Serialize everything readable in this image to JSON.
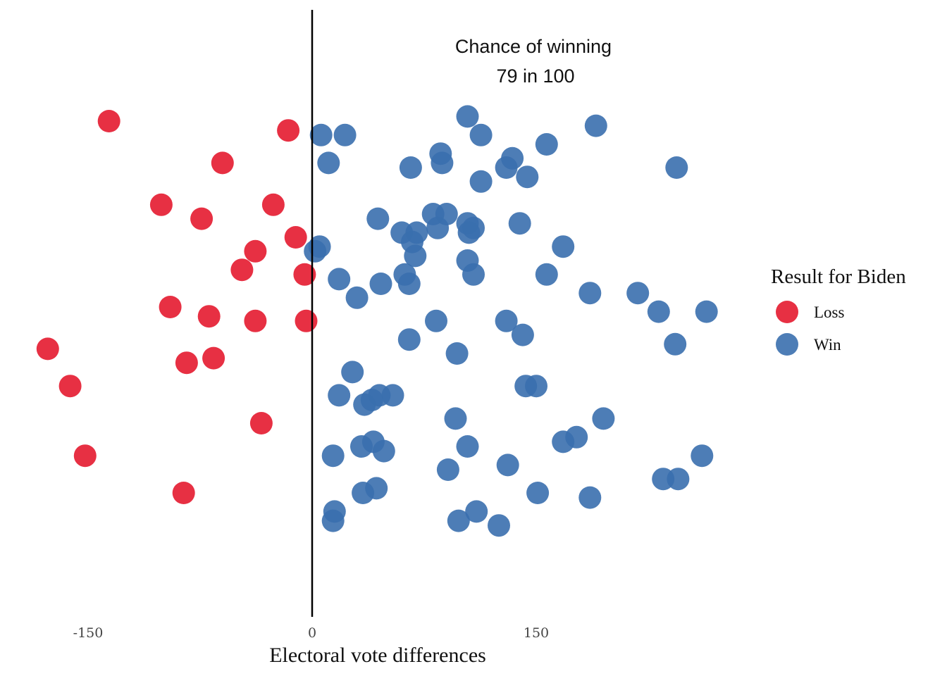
{
  "chart_data": {
    "type": "scatter",
    "title": "",
    "annotation": {
      "line1": "Chance of winning",
      "line2": "79 in 100"
    },
    "xlabel": "Electoral vote differences",
    "ylabel": "",
    "xlim": [
      -200,
      300
    ],
    "xticks": [
      {
        "value": -150,
        "label": "-150"
      },
      {
        "value": 0,
        "label": "0"
      },
      {
        "value": 150,
        "label": "150"
      }
    ],
    "reference_line": 0,
    "grid": false,
    "legend": {
      "title": "Result for Biden",
      "position": "right",
      "entries": [
        {
          "label": "Loss",
          "color": "#E41A2F"
        },
        {
          "label": "Win",
          "color": "#3A6FAE"
        }
      ]
    },
    "series": [
      {
        "name": "Loss",
        "color": "#E41A2F",
        "points": [
          [
            -136,
            0.8
          ],
          [
            -16,
            0.78
          ],
          [
            -60,
            0.71
          ],
          [
            -101,
            0.62
          ],
          [
            -26,
            0.62
          ],
          [
            -74,
            0.59
          ],
          [
            -11,
            0.55
          ],
          [
            -38,
            0.52
          ],
          [
            -47,
            0.48
          ],
          [
            -5,
            0.47
          ],
          [
            -95,
            0.4
          ],
          [
            -69,
            0.38
          ],
          [
            -38,
            0.37
          ],
          [
            -4,
            0.37
          ],
          [
            -177,
            0.31
          ],
          [
            -84,
            0.28
          ],
          [
            -66,
            0.29
          ],
          [
            -162,
            0.23
          ],
          [
            -34,
            0.15
          ],
          [
            -152,
            0.08
          ],
          [
            -86,
            0.0
          ]
        ]
      },
      {
        "name": "Win",
        "color": "#3A6FAE",
        "points": [
          [
            104,
            0.81
          ],
          [
            190,
            0.79
          ],
          [
            22,
            0.77
          ],
          [
            6,
            0.77
          ],
          [
            113,
            0.77
          ],
          [
            157,
            0.75
          ],
          [
            86,
            0.73
          ],
          [
            134,
            0.72
          ],
          [
            11,
            0.71
          ],
          [
            87,
            0.71
          ],
          [
            66,
            0.7
          ],
          [
            130,
            0.7
          ],
          [
            244,
            0.7
          ],
          [
            144,
            0.68
          ],
          [
            113,
            0.67
          ],
          [
            81,
            0.6
          ],
          [
            90,
            0.6
          ],
          [
            44,
            0.59
          ],
          [
            104,
            0.58
          ],
          [
            139,
            0.58
          ],
          [
            84,
            0.57
          ],
          [
            108,
            0.57
          ],
          [
            60,
            0.56
          ],
          [
            70,
            0.56
          ],
          [
            105,
            0.56
          ],
          [
            2,
            0.52
          ],
          [
            168,
            0.53
          ],
          [
            67,
            0.54
          ],
          [
            5,
            0.53
          ],
          [
            69,
            0.51
          ],
          [
            104,
            0.5
          ],
          [
            62,
            0.47
          ],
          [
            108,
            0.47
          ],
          [
            157,
            0.47
          ],
          [
            18,
            0.46
          ],
          [
            46,
            0.45
          ],
          [
            65,
            0.45
          ],
          [
            186,
            0.43
          ],
          [
            218,
            0.43
          ],
          [
            30,
            0.42
          ],
          [
            264,
            0.39
          ],
          [
            232,
            0.39
          ],
          [
            130,
            0.37
          ],
          [
            83,
            0.37
          ],
          [
            65,
            0.33
          ],
          [
            141,
            0.34
          ],
          [
            243,
            0.32
          ],
          [
            97,
            0.3
          ],
          [
            27,
            0.26
          ],
          [
            150,
            0.23
          ],
          [
            143,
            0.23
          ],
          [
            18,
            0.21
          ],
          [
            45,
            0.21
          ],
          [
            54,
            0.21
          ],
          [
            40,
            0.2
          ],
          [
            35,
            0.19
          ],
          [
            96,
            0.16
          ],
          [
            195,
            0.16
          ],
          [
            41,
            0.11
          ],
          [
            177,
            0.12
          ],
          [
            168,
            0.11
          ],
          [
            33,
            0.1
          ],
          [
            48,
            0.09
          ],
          [
            104,
            0.1
          ],
          [
            261,
            0.08
          ],
          [
            14,
            0.08
          ],
          [
            131,
            0.06
          ],
          [
            91,
            0.05
          ],
          [
            235,
            0.03
          ],
          [
            245,
            0.03
          ],
          [
            34,
            0.0
          ],
          [
            43,
            0.01
          ],
          [
            151,
            0.0
          ],
          [
            186,
            -0.01
          ],
          [
            15,
            -0.04
          ],
          [
            110,
            -0.04
          ],
          [
            14,
            -0.06
          ],
          [
            98,
            -0.06
          ],
          [
            125,
            -0.07
          ]
        ]
      }
    ]
  }
}
